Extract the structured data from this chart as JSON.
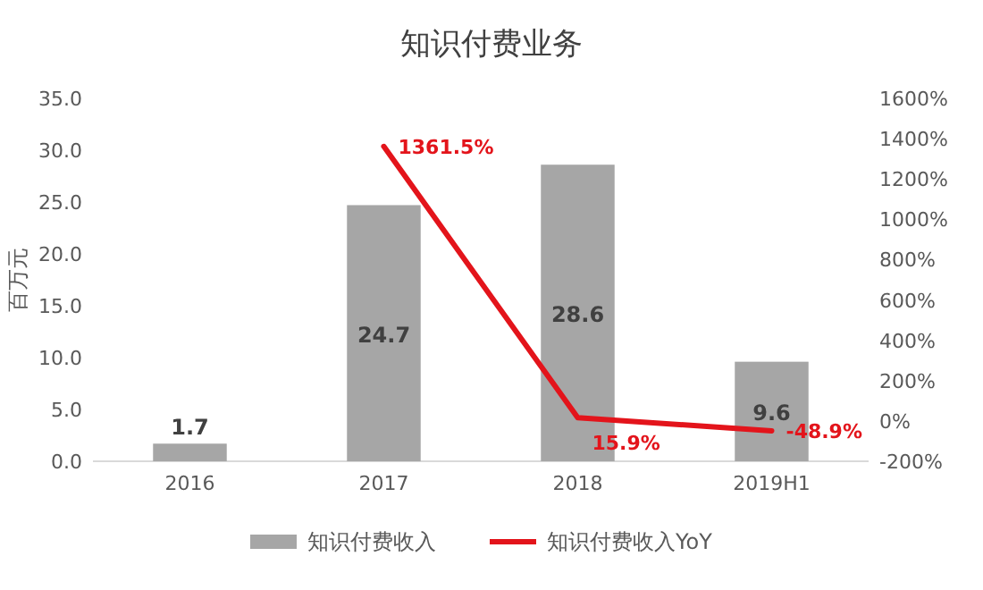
{
  "chart_data": {
    "type": "bar",
    "title": "知识付费业务",
    "ylabel": "百万元",
    "categories": [
      "2016",
      "2017",
      "2018",
      "2019H1"
    ],
    "ylim": [
      0,
      35
    ],
    "yticks": [
      {
        "value": 0,
        "label": "0.0"
      },
      {
        "value": 5,
        "label": "5.0"
      },
      {
        "value": 10,
        "label": "10.0"
      },
      {
        "value": 15,
        "label": "15.0"
      },
      {
        "value": 20,
        "label": "20.0"
      },
      {
        "value": 25,
        "label": "25.0"
      },
      {
        "value": 30,
        "label": "30.0"
      },
      {
        "value": 35,
        "label": "35.0"
      }
    ],
    "y2lim": [
      -200,
      1600
    ],
    "y2ticks": [
      {
        "value": -200,
        "label": "-200%"
      },
      {
        "value": 0,
        "label": "0%"
      },
      {
        "value": 200,
        "label": "200%"
      },
      {
        "value": 400,
        "label": "400%"
      },
      {
        "value": 600,
        "label": "600%"
      },
      {
        "value": 800,
        "label": "800%"
      },
      {
        "value": 1000,
        "label": "1000%"
      },
      {
        "value": 1200,
        "label": "1200%"
      },
      {
        "value": 1400,
        "label": "1400%"
      },
      {
        "value": 1600,
        "label": "1600%"
      }
    ],
    "series": [
      {
        "name": "知识付费收入",
        "color": "#a6a6a6",
        "values": [
          1.7,
          24.7,
          28.6,
          9.6
        ],
        "value_labels": [
          "1.7",
          "24.7",
          "28.6",
          "9.6"
        ]
      },
      {
        "name": "知识付费收入YoY",
        "type": "line",
        "axis": "y2",
        "color": "#e3141b",
        "values": [
          null,
          1361.5,
          15.9,
          -48.9
        ],
        "value_labels": [
          null,
          "1361.5%",
          "15.9%",
          "-48.9%"
        ]
      }
    ],
    "legend": "bottom"
  }
}
